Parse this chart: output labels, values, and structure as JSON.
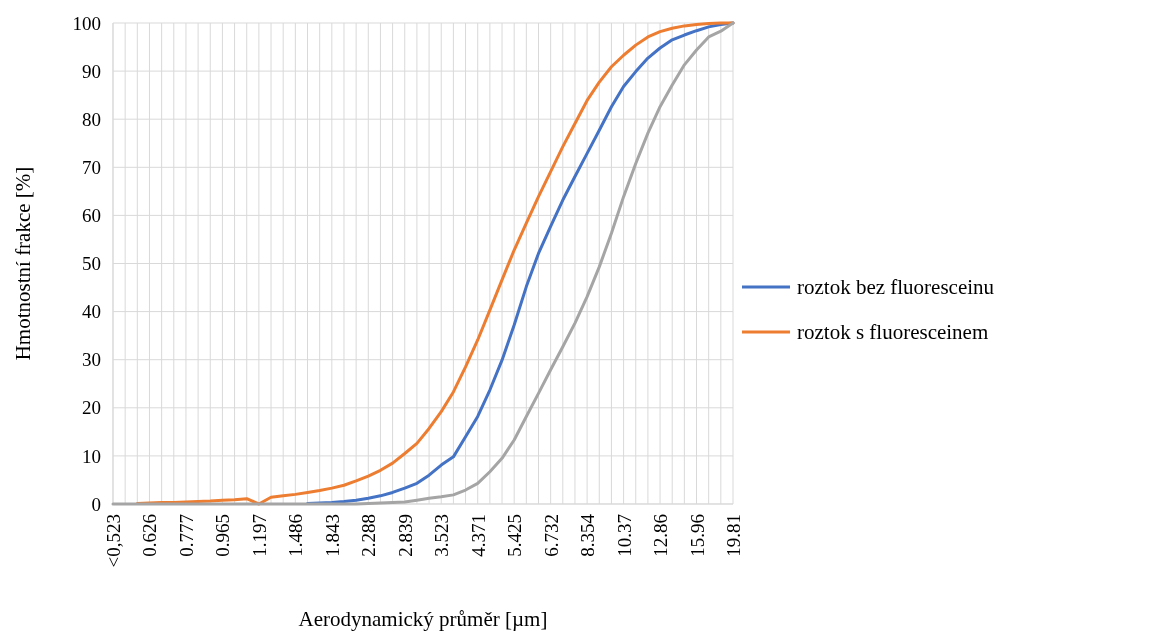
{
  "chart_data": {
    "type": "line",
    "xlabel": "Aerodynamický průměr [µm]",
    "ylabel": "Hmotnostní frakce [%]",
    "categories": [
      "<0,523",
      null,
      null,
      "0.626",
      null,
      null,
      "0.777",
      null,
      null,
      "0.965",
      null,
      null,
      "1.197",
      null,
      null,
      "1.486",
      null,
      null,
      "1.843",
      null,
      null,
      "2.288",
      null,
      null,
      "2.839",
      null,
      null,
      "3.523",
      null,
      null,
      "4.371",
      null,
      null,
      "5.425",
      null,
      null,
      "6.732",
      null,
      null,
      "8.354",
      null,
      null,
      "10.37",
      null,
      null,
      "12.86",
      null,
      null,
      "15.96",
      null,
      null,
      "19.81"
    ],
    "series": [
      {
        "name": "roztok bez fluoresceinu",
        "color": "#4472c4",
        "values": [
          null,
          null,
          null,
          null,
          null,
          null,
          null,
          null,
          null,
          null,
          null,
          null,
          null,
          null,
          null,
          null,
          0.1,
          0.2,
          0.3,
          0.5,
          0.8,
          1.2,
          1.7,
          2.4,
          3.3,
          4.3,
          6.0,
          8.1,
          9.8,
          14.0,
          18.2,
          23.7,
          29.9,
          37.2,
          45.2,
          52.1,
          57.7,
          63.2,
          68.1,
          72.9,
          77.7,
          82.6,
          86.8,
          89.9,
          92.7,
          94.8,
          96.5,
          97.5,
          98.4,
          99.2,
          99.7,
          100
        ]
      },
      {
        "name": "roztok s fluoresceinem",
        "color": "#ed7d31",
        "values": [
          null,
          null,
          0.1,
          0.2,
          0.3,
          0.3,
          0.4,
          0.5,
          0.6,
          0.8,
          0.9,
          1.1,
          0,
          1.4,
          1.7,
          2.0,
          2.4,
          2.8,
          3.3,
          3.9,
          4.8,
          5.8,
          7.0,
          8.5,
          10.5,
          12.6,
          15.7,
          19.2,
          23.3,
          28.5,
          34.1,
          40.3,
          46.6,
          52.8,
          58.4,
          63.9,
          69.1,
          74.3,
          79.1,
          83.9,
          87.7,
          90.9,
          93.3,
          95.4,
          97.1,
          98.2,
          98.9,
          99.4,
          99.7,
          99.9,
          100,
          100
        ]
      },
      {
        "color": "#a5a5a5",
        "values": [
          0,
          0,
          0,
          0,
          0,
          0,
          0,
          0,
          0,
          0,
          0,
          0,
          0,
          0,
          0,
          0,
          0,
          0,
          0,
          0,
          0,
          0.1,
          0.2,
          0.3,
          0.4,
          0.8,
          1.2,
          1.5,
          1.9,
          2.9,
          4.3,
          6.7,
          9.5,
          13.3,
          18.2,
          23.0,
          27.9,
          32.7,
          37.6,
          43.1,
          49.3,
          56.3,
          63.9,
          70.8,
          77.1,
          82.6,
          87.1,
          91.3,
          94.4,
          97.1,
          98.3,
          100
        ]
      }
    ],
    "ylim": [
      0,
      100
    ],
    "yticks": [
      0,
      10,
      20,
      30,
      40,
      50,
      60,
      70,
      80,
      90,
      100
    ],
    "grid": true,
    "legend": "right",
    "line_style": "solid",
    "marker": "none"
  }
}
